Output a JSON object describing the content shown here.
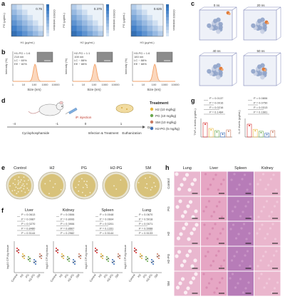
{
  "panels": {
    "a": {
      "letter": "a",
      "heatmaps": [
        {
          "xlabel": "H1 (μg/mL)",
          "ylabel": "PG (μg/mL)",
          "value": "0.75",
          "cbar_label": "OD600 inhibition"
        },
        {
          "xlabel": "H2 (μg/mL)",
          "ylabel": "PG (μg/mL)",
          "value": "0.375",
          "cbar_label": "OD600 inhibition"
        },
        {
          "xlabel": "H3 (μg/mL)",
          "ylabel": "PG (μg/mL)",
          "value": "0.625",
          "cbar_label": "OD600 inhibition"
        }
      ],
      "accent": "#4a74b0"
    },
    "b": {
      "letter": "b",
      "ylabel": "Intensity (%)",
      "xlabel": "Size (nm)",
      "ticks": [
        "1",
        "10",
        "100",
        "1000",
        "10000"
      ],
      "items": [
        {
          "info": [
            "H1-PG = 1:6",
            "218 nm",
            "LC ~ 60%",
            "EE ~ 82%"
          ]
        },
        {
          "info": [
            "H2-PG = 1:1",
            "108 nm",
            "LC ~ 88%",
            "EE ~ 88%"
          ]
        },
        {
          "info": [
            "H3-PG = 1:6",
            "183 nm",
            "LC ~ 88%",
            "EE ~ 88%"
          ]
        }
      ],
      "curve_color": "#f2a168"
    },
    "c": {
      "letter": "c",
      "frames": [
        {
          "time": "0 ns"
        },
        {
          "time": "20 ns"
        },
        {
          "time": "40 ns"
        },
        {
          "time": "50 ns"
        }
      ]
    },
    "d": {
      "letter": "d",
      "injection_label": "iP. injection",
      "timeline_ticks": [
        "-4",
        "-1",
        "0",
        "1",
        "Day"
      ],
      "phases": [
        "Cyclophosphamide",
        "Infection & Treatment",
        "Euthanization"
      ],
      "treatment_title": "Treatment",
      "treatments": [
        {
          "label": "H2 (10 mg/kg)",
          "color": "#e9b83c"
        },
        {
          "label": "PG (10 mg/kg)",
          "color": "#6aa84f"
        },
        {
          "label": "SM (10 mg/kg)",
          "color": "#c97b63"
        },
        {
          "label": "H2-PG (5 mg/kg)",
          "color": "#3d6fb6"
        }
      ]
    },
    "e": {
      "letter": "e",
      "plates": [
        "Control",
        "H2",
        "PG",
        "H2-PG",
        "SM"
      ]
    },
    "f": {
      "letter": "f",
      "ylabel": "log10 CFU/g tissue",
      "groups": [
        "Control",
        "H2",
        "PG",
        "H2-PG",
        "SM"
      ],
      "charts": [
        {
          "title": "Liver",
          "pvalues": [
            "P = 0.0613",
            "P = 0.0987",
            "P = 0.0270",
            "P = 0.8480",
            "P = 0.5144"
          ]
        },
        {
          "title": "Kidney",
          "pvalues": [
            "P = 0.0506",
            "P = 0.8006",
            "P = 0.3906",
            "P = 0.8667",
            "P = 0.2982"
          ]
        },
        {
          "title": "Spleen",
          "pvalues": [
            "P = 0.0048",
            "P = 0.0604",
            "P = 0.0201",
            "P = 0.1331",
            "P = 0.5144"
          ]
        },
        {
          "title": "Lung",
          "pvalues": [
            "P = 0.0670",
            "P = 0.5018",
            "P = 0.0071",
            "P = 0.5088",
            "P = 0.5133"
          ]
        }
      ]
    },
    "g": {
      "letter": "g",
      "charts": [
        {
          "ylabel": "TNF-α levels (pg/mL)",
          "pvalues": [
            "P = 0.0137",
            "P = 0.0016",
            "P = 0.0216",
            "P = 0.1484"
          ]
        },
        {
          "ylabel": "IL-6 levels (pg/mL)",
          "pvalues": [
            "P = 0.0806",
            "P = 0.0750",
            "P = 0.0313",
            "P = 0.1661"
          ]
        }
      ],
      "groups": [
        "Control",
        "H2",
        "PG",
        "H2-PG",
        "SM"
      ]
    },
    "h": {
      "letter": "h",
      "columns": [
        "Lung",
        "Liver",
        "Spleen",
        "Kidney"
      ],
      "rows": [
        "Control",
        "PG",
        "H2",
        "H2-PG",
        "SM"
      ]
    }
  }
}
